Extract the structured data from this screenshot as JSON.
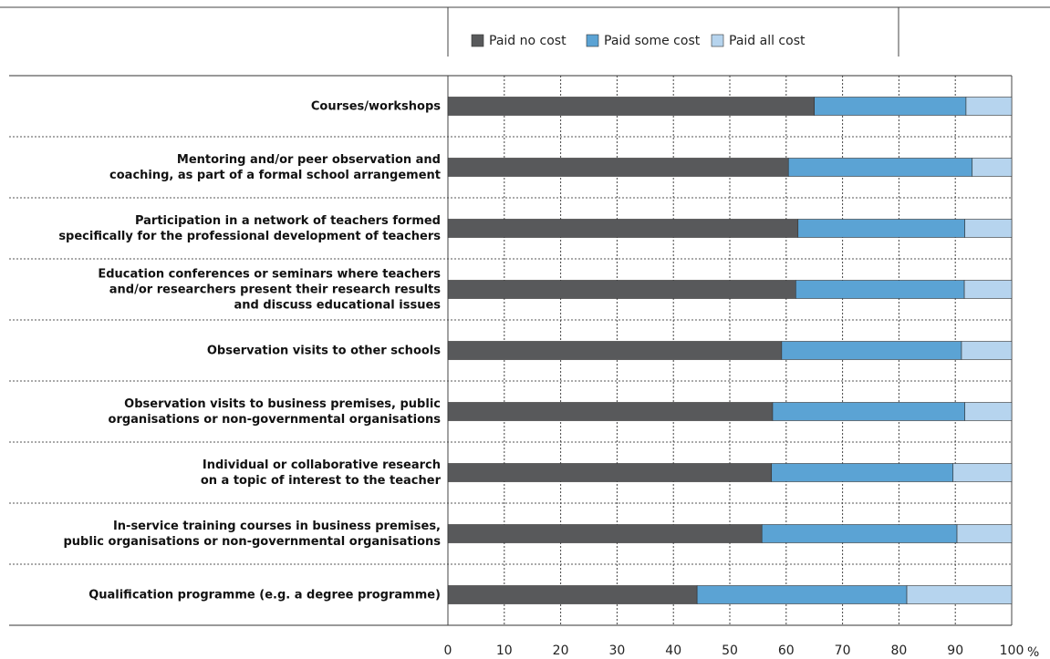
{
  "chart_data": {
    "type": "stacked_barh",
    "categories": [
      "Courses/workshops",
      "Mentoring and/or peer observation and\ncoaching, as part of a formal school arrangement",
      "Participation in a network of teachers formed\nspecifically for the professional development of teachers",
      "Education conferences or seminars where teachers\nand/or researchers present their research results\nand discuss educational issues",
      "Observation visits to other schools",
      "Observation visits to business premises, public\norganisations or non-governmental organisations",
      "Individual or collaborative research\non a topic of interest to the teacher",
      "In-service training courses in business premises,\npublic organisations or non-governmental organisations",
      "Qualification programme (e.g. a degree programme)"
    ],
    "series": [
      {
        "name": "Paid no cost",
        "color": "#58595b",
        "values": [
          65.0,
          60.4,
          62.1,
          61.7,
          59.2,
          57.6,
          57.4,
          55.7,
          44.2
        ]
      },
      {
        "name": "Paid some cost",
        "color": "#5ba3d4",
        "values": [
          26.9,
          32.6,
          29.6,
          29.9,
          31.9,
          34.1,
          32.2,
          34.6,
          37.2
        ]
      },
      {
        "name": "Paid all cost",
        "color": "#b6d4ee",
        "values": [
          8.1,
          7.0,
          8.3,
          8.4,
          8.9,
          8.3,
          10.4,
          9.7,
          18.6
        ]
      }
    ],
    "x_unit": "%",
    "xlim": [
      0,
      100
    ],
    "xticks": [
      0,
      10,
      20,
      30,
      40,
      50,
      60,
      70,
      80,
      90,
      100
    ],
    "grid": true
  }
}
